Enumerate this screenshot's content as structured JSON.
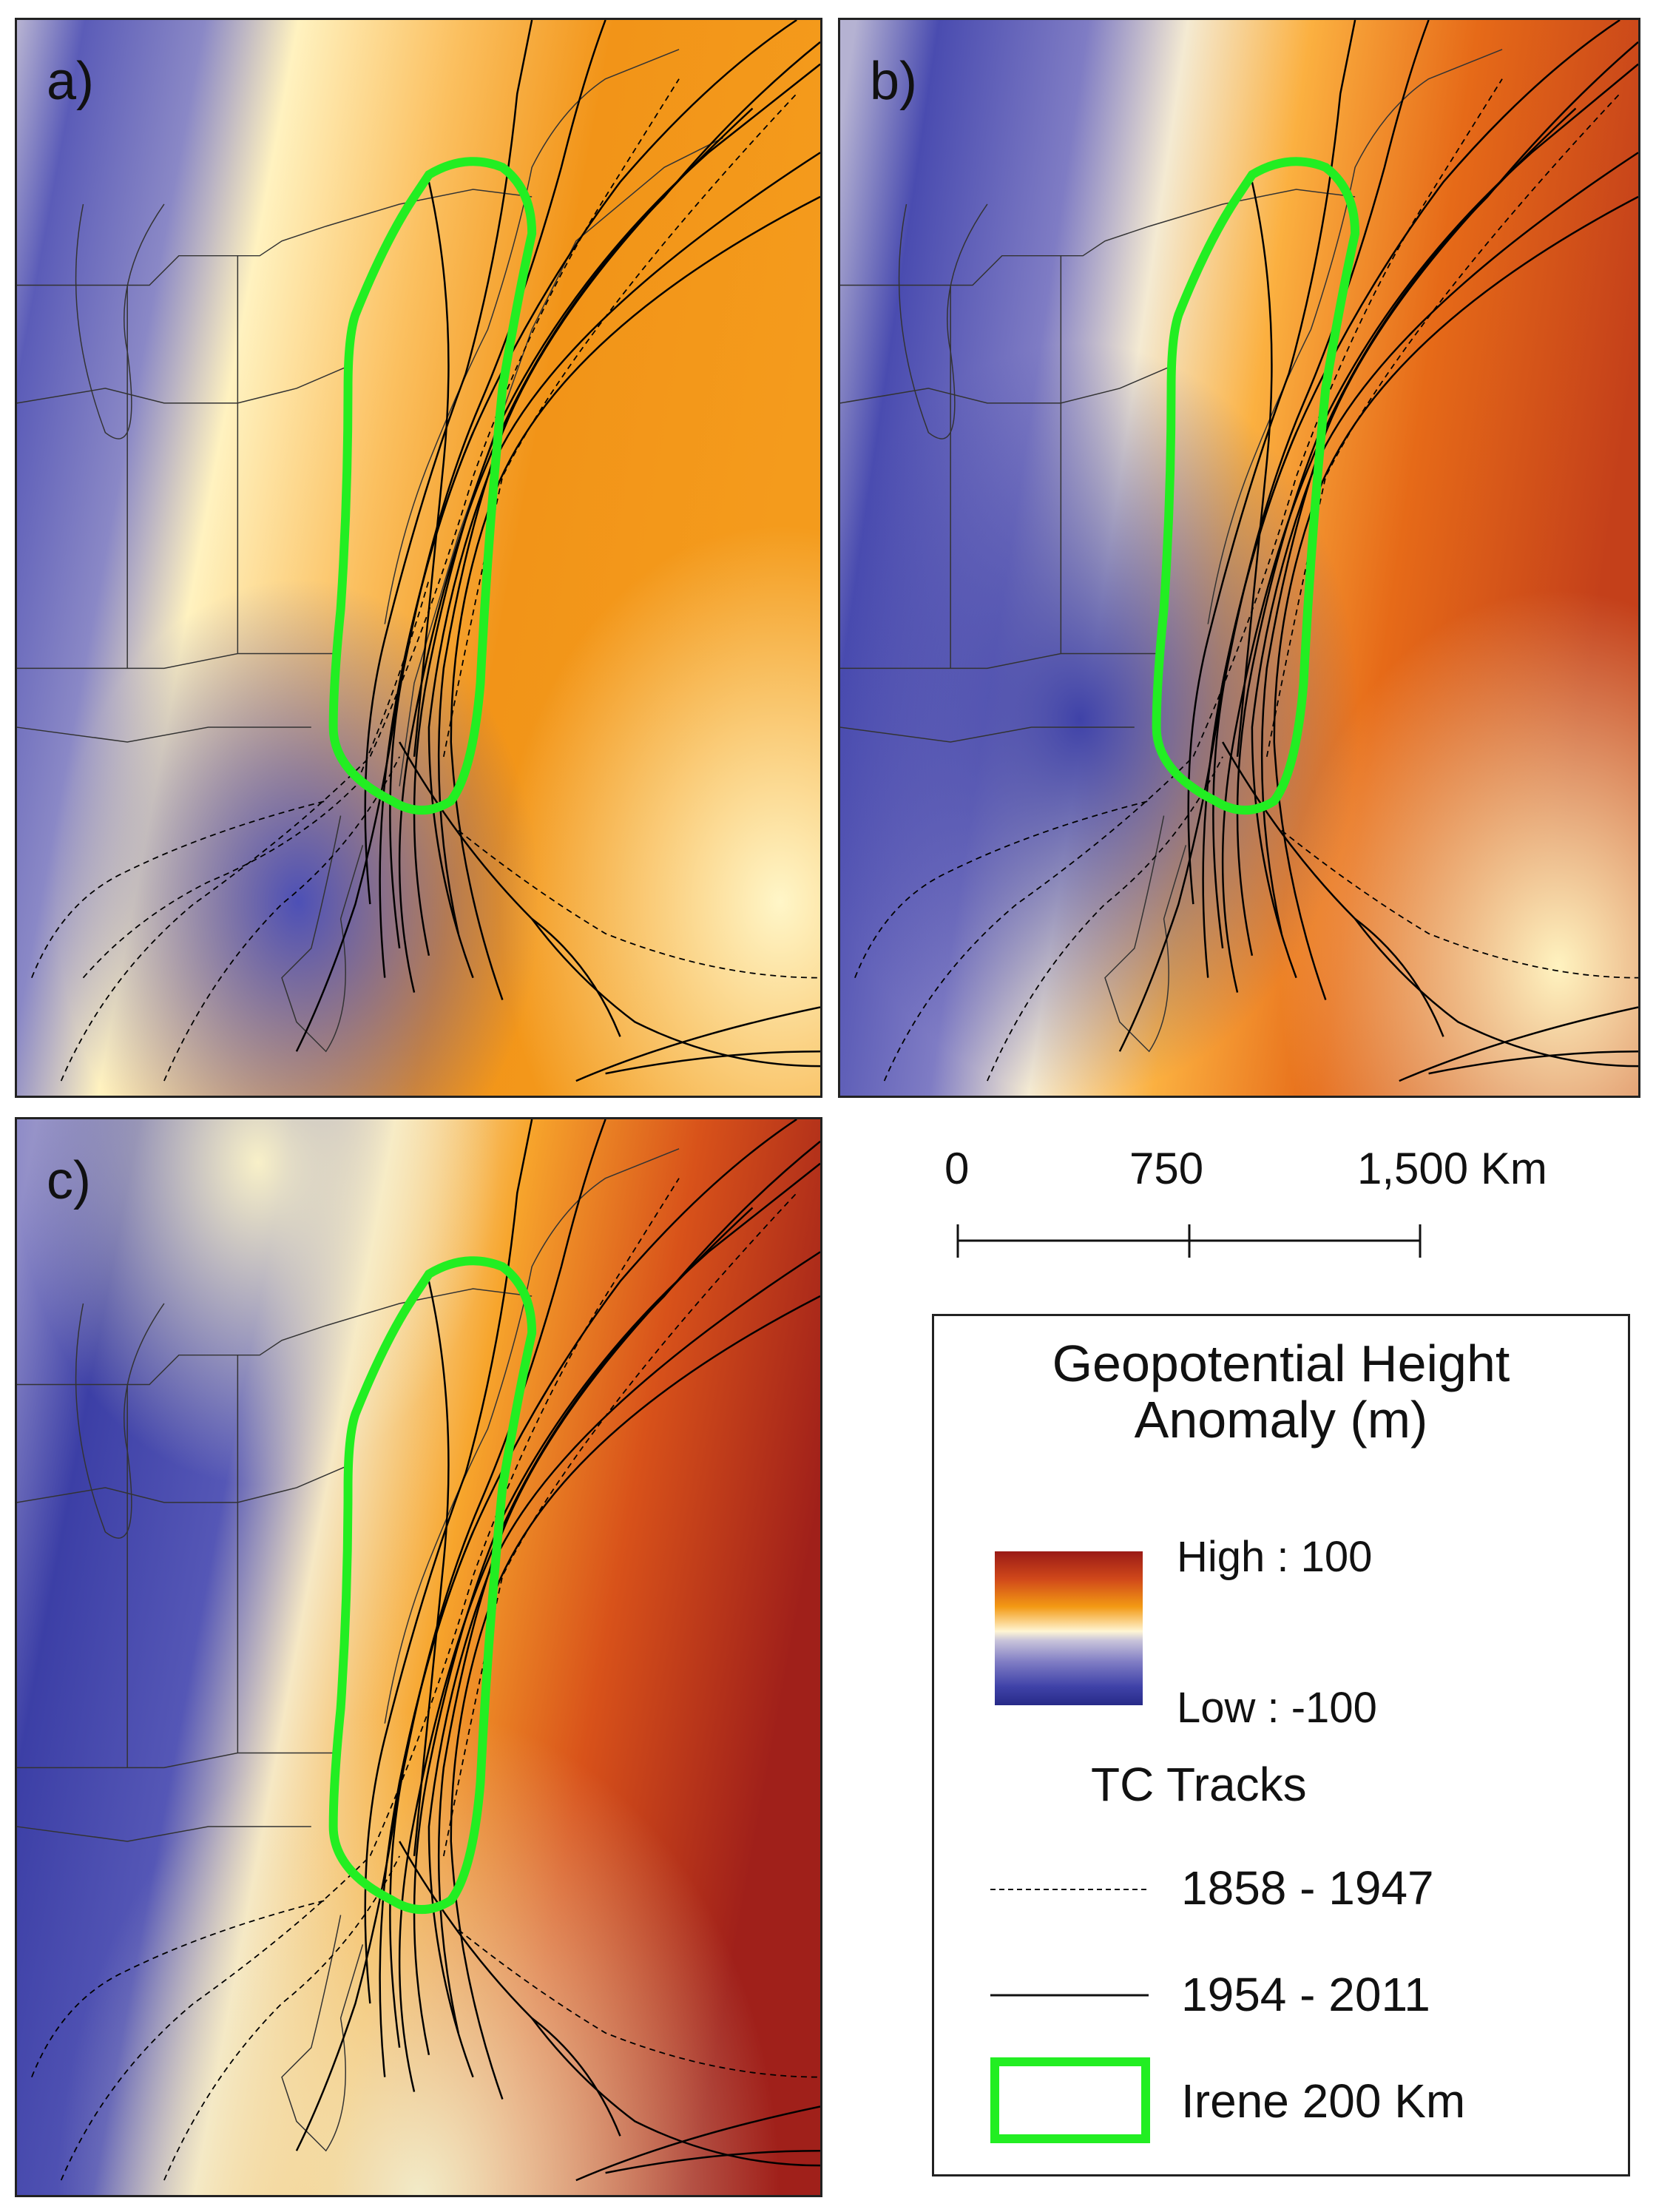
{
  "panels": [
    {
      "label": "a)"
    },
    {
      "label": "b)"
    },
    {
      "label": "c)"
    }
  ],
  "scale_bar": {
    "tick_labels": [
      "0",
      "750",
      "1,500 Km"
    ]
  },
  "legend": {
    "title_line1": "Geopotential Height",
    "title_line2": "Anomaly (m)",
    "high_label": "High : 100",
    "low_label": "Low : -100",
    "tracks_heading": "TC Tracks",
    "dashed_label": "1858 - 1947",
    "solid_label": "1954 - 2011",
    "irene_label": "Irene 200 Km"
  },
  "colors": {
    "high": "#9a1a16",
    "orange": "#f39a14",
    "neutral": "#fff6d4",
    "low": "#272a88",
    "irene_buffer": "#22ee22",
    "track": "#000000"
  }
}
